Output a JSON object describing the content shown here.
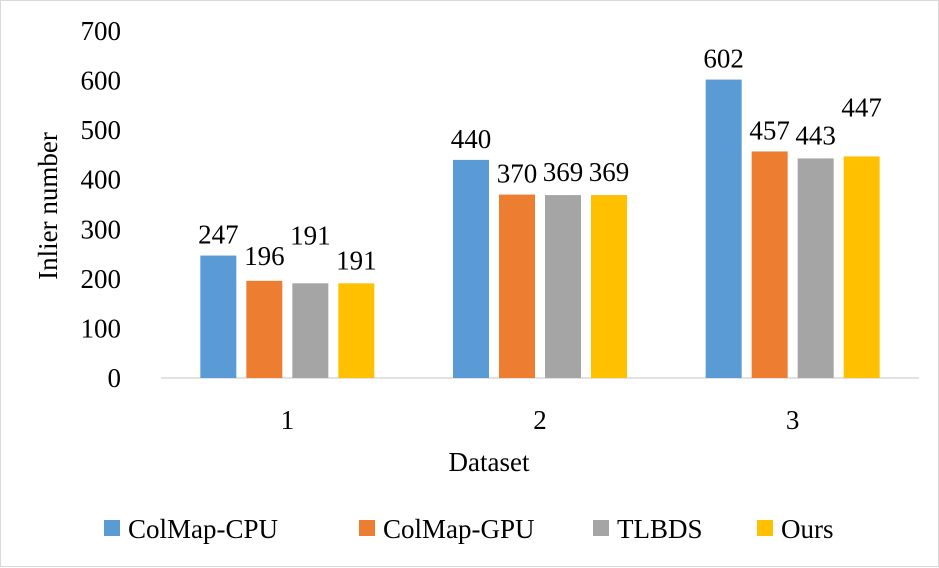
{
  "chart_data": {
    "type": "bar",
    "title": "",
    "xlabel": "Dataset",
    "ylabel": "Inlier number",
    "ylim": [
      0,
      700
    ],
    "yticks": [
      "0",
      "100",
      "200",
      "300",
      "400",
      "500",
      "600",
      "700"
    ],
    "categories": [
      "1",
      "2",
      "3"
    ],
    "series": [
      {
        "name": "ColMap-CPU",
        "color": "#5b9bd5",
        "values": [
          247,
          440,
          602
        ],
        "labels": [
          "247",
          "440",
          "602"
        ]
      },
      {
        "name": "ColMap-GPU",
        "color": "#ed7d31",
        "values": [
          196,
          370,
          457
        ],
        "labels": [
          "196",
          "370",
          "457"
        ]
      },
      {
        "name": "TLBDS",
        "color": "#a5a5a5",
        "values": [
          191,
          369,
          443
        ],
        "labels": [
          "191",
          "369",
          "443"
        ]
      },
      {
        "name": "Ours",
        "color": "#ffc000",
        "values": [
          191,
          369,
          447
        ],
        "labels": [
          "191",
          "369",
          "447"
        ]
      }
    ],
    "grid": false,
    "legend_position": "bottom"
  }
}
